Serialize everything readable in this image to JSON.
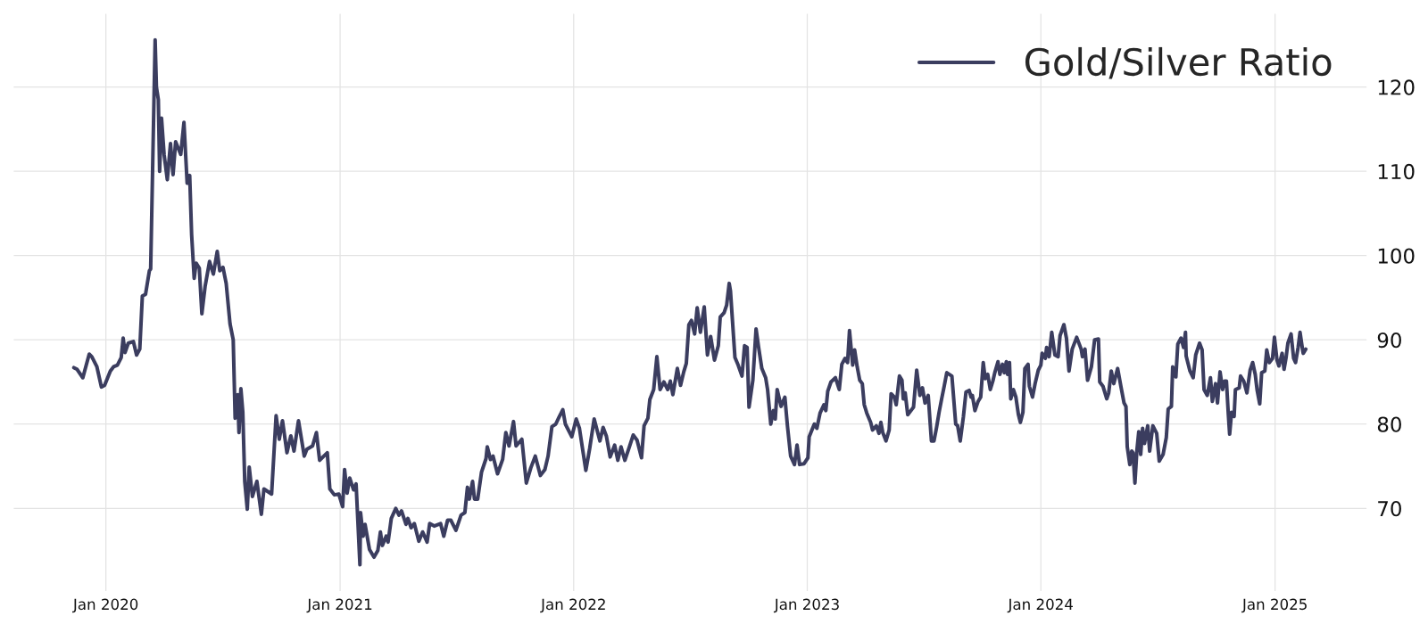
{
  "chart_data": {
    "type": "line",
    "x": [
      "2019-11-12",
      "2019-11-17",
      "2019-11-26",
      "2019-12-06",
      "2019-12-10",
      "2019-12-18",
      "2019-12-25",
      "2019-12-30",
      "2020-01-08",
      "2020-01-13",
      "2020-01-19",
      "2020-01-25",
      "2020-01-28",
      "2020-01-31",
      "2020-02-05",
      "2020-02-13",
      "2020-02-18",
      "2020-02-23",
      "2020-02-27",
      "2020-03-03",
      "2020-03-09",
      "2020-03-11",
      "2020-03-18",
      "2020-03-20",
      "2020-03-23",
      "2020-03-25",
      "2020-03-28",
      "2020-04-01",
      "2020-04-06",
      "2020-04-11",
      "2020-04-15",
      "2020-04-19",
      "2020-04-27",
      "2020-05-02",
      "2020-05-07",
      "2020-05-11",
      "2020-05-14",
      "2020-05-18",
      "2020-05-21",
      "2020-05-26",
      "2020-05-30",
      "2020-06-04",
      "2020-06-11",
      "2020-06-17",
      "2020-06-23",
      "2020-06-27",
      "2020-07-02",
      "2020-07-07",
      "2020-07-13",
      "2020-07-18",
      "2020-07-21",
      "2020-07-25",
      "2020-07-27",
      "2020-07-30",
      "2020-08-02",
      "2020-08-05",
      "2020-08-09",
      "2020-08-12",
      "2020-08-17",
      "2020-08-24",
      "2020-08-31",
      "2020-09-04",
      "2020-09-16",
      "2020-09-23",
      "2020-09-28",
      "2020-10-03",
      "2020-10-10",
      "2020-10-16",
      "2020-10-21",
      "2020-10-28",
      "2020-11-06",
      "2020-11-10",
      "2020-11-19",
      "2020-11-25",
      "2020-11-30",
      "2020-12-12",
      "2020-12-16",
      "2020-12-23",
      "2020-12-30",
      "2021-01-05",
      "2021-01-08",
      "2021-01-12",
      "2021-01-16",
      "2021-01-22",
      "2021-01-26",
      "2021-02-01",
      "2021-02-02",
      "2021-02-06",
      "2021-02-09",
      "2021-02-16",
      "2021-02-23",
      "2021-03-01",
      "2021-03-05",
      "2021-03-08",
      "2021-03-14",
      "2021-03-17",
      "2021-03-22",
      "2021-03-29",
      "2021-04-03",
      "2021-04-07",
      "2021-04-14",
      "2021-04-17",
      "2021-04-22",
      "2021-04-27",
      "2021-05-04",
      "2021-05-10",
      "2021-05-17",
      "2021-05-21",
      "2021-05-28",
      "2021-06-07",
      "2021-06-12",
      "2021-06-18",
      "2021-06-23",
      "2021-07-01",
      "2021-07-09",
      "2021-07-15",
      "2021-07-19",
      "2021-07-22",
      "2021-07-27",
      "2021-07-30",
      "2021-08-04",
      "2021-08-10",
      "2021-08-17",
      "2021-08-19",
      "2021-08-24",
      "2021-08-28",
      "2021-09-04",
      "2021-09-12",
      "2021-09-17",
      "2021-09-22",
      "2021-09-29",
      "2021-10-03",
      "2021-10-12",
      "2021-10-19",
      "2021-10-26",
      "2021-11-02",
      "2021-11-10",
      "2021-11-17",
      "2021-11-22",
      "2021-11-28",
      "2021-12-04",
      "2021-12-09",
      "2021-12-15",
      "2021-12-19",
      "2021-12-29",
      "2022-01-05",
      "2022-01-10",
      "2022-01-20",
      "2022-01-26",
      "2022-02-02",
      "2022-02-11",
      "2022-02-16",
      "2022-02-21",
      "2022-02-27",
      "2022-03-06",
      "2022-03-11",
      "2022-03-16",
      "2022-03-22",
      "2022-03-29",
      "2022-04-04",
      "2022-04-10",
      "2022-04-17",
      "2022-04-21",
      "2022-04-27",
      "2022-04-30",
      "2022-05-06",
      "2022-05-11",
      "2022-05-16",
      "2022-05-22",
      "2022-05-28",
      "2022-06-01",
      "2022-06-05",
      "2022-06-12",
      "2022-06-17",
      "2022-06-22",
      "2022-06-26",
      "2022-06-30",
      "2022-07-04",
      "2022-07-09",
      "2022-07-13",
      "2022-07-18",
      "2022-07-24",
      "2022-07-29",
      "2022-08-03",
      "2022-08-09",
      "2022-08-15",
      "2022-08-18",
      "2022-08-24",
      "2022-08-28",
      "2022-09-01",
      "2022-09-03",
      "2022-09-10",
      "2022-09-15",
      "2022-09-21",
      "2022-09-25",
      "2022-09-29",
      "2022-10-02",
      "2022-10-08",
      "2022-10-13",
      "2022-10-17",
      "2022-10-22",
      "2022-10-28",
      "2022-10-31",
      "2022-11-05",
      "2022-11-09",
      "2022-11-12",
      "2022-11-15",
      "2022-11-21",
      "2022-11-27",
      "2022-12-01",
      "2022-12-06",
      "2022-12-12",
      "2022-12-16",
      "2022-12-20",
      "2022-12-27",
      "2023-01-02",
      "2023-01-04",
      "2023-01-12",
      "2023-01-16",
      "2023-01-21",
      "2023-01-27",
      "2023-01-30",
      "2023-02-02",
      "2023-02-07",
      "2023-02-14",
      "2023-02-20",
      "2023-02-24",
      "2023-03-01",
      "2023-03-05",
      "2023-03-08",
      "2023-03-13",
      "2023-03-16",
      "2023-03-20",
      "2023-03-24",
      "2023-03-28",
      "2023-03-31",
      "2023-04-04",
      "2023-04-10",
      "2023-04-13",
      "2023-04-19",
      "2023-04-23",
      "2023-04-26",
      "2023-04-29",
      "2023-05-04",
      "2023-05-09",
      "2023-05-12",
      "2023-05-17",
      "2023-05-20",
      "2023-05-25",
      "2023-05-29",
      "2023-05-31",
      "2023-06-03",
      "2023-06-07",
      "2023-06-12",
      "2023-06-16",
      "2023-06-21",
      "2023-06-26",
      "2023-06-30",
      "2023-07-04",
      "2023-07-09",
      "2023-07-14",
      "2023-07-18",
      "2023-07-22",
      "2023-07-26",
      "2023-07-30",
      "2023-08-03",
      "2023-08-07",
      "2023-08-15",
      "2023-08-21",
      "2023-08-24",
      "2023-08-28",
      "2023-09-02",
      "2023-09-06",
      "2023-09-11",
      "2023-09-14",
      "2023-09-16",
      "2023-09-20",
      "2023-09-25",
      "2023-09-29",
      "2023-10-03",
      "2023-10-06",
      "2023-10-10",
      "2023-10-14",
      "2023-10-18",
      "2023-10-21",
      "2023-10-26",
      "2023-10-29",
      "2023-11-02",
      "2023-11-05",
      "2023-11-08",
      "2023-11-10",
      "2023-11-13",
      "2023-11-15",
      "2023-11-19",
      "2023-11-23",
      "2023-11-27",
      "2023-11-30",
      "2023-12-04",
      "2023-12-07",
      "2023-12-12",
      "2023-12-14",
      "2023-12-19",
      "2023-12-23",
      "2023-12-28",
      "2024-01-01",
      "2024-01-03",
      "2024-01-08",
      "2024-01-10",
      "2024-01-14",
      "2024-01-18",
      "2024-01-23",
      "2024-01-28",
      "2024-01-31",
      "2024-02-06",
      "2024-02-10",
      "2024-02-14",
      "2024-02-19",
      "2024-02-26",
      "2024-03-04",
      "2024-03-06",
      "2024-03-10",
      "2024-03-14",
      "2024-03-20",
      "2024-03-25",
      "2024-03-31",
      "2024-04-02",
      "2024-04-07",
      "2024-04-13",
      "2024-04-16",
      "2024-04-20",
      "2024-04-24",
      "2024-04-30",
      "2024-05-05",
      "2024-05-10",
      "2024-05-13",
      "2024-05-15",
      "2024-05-19",
      "2024-05-22",
      "2024-05-24",
      "2024-05-27",
      "2024-05-30",
      "2024-06-02",
      "2024-06-05",
      "2024-06-08",
      "2024-06-11",
      "2024-06-16",
      "2024-06-19",
      "2024-06-24",
      "2024-06-30",
      "2024-07-04",
      "2024-07-10",
      "2024-07-15",
      "2024-07-18",
      "2024-07-23",
      "2024-07-25",
      "2024-07-30",
      "2024-08-02",
      "2024-08-07",
      "2024-08-11",
      "2024-08-14",
      "2024-08-15",
      "2024-08-21",
      "2024-08-26",
      "2024-08-30",
      "2024-09-05",
      "2024-09-09",
      "2024-09-12",
      "2024-09-17",
      "2024-09-22",
      "2024-09-25",
      "2024-09-30",
      "2024-10-03",
      "2024-10-07",
      "2024-10-11",
      "2024-10-14",
      "2024-10-17",
      "2024-10-20",
      "2024-10-22",
      "2024-10-25",
      "2024-10-29",
      "2024-10-31",
      "2024-11-06",
      "2024-11-08",
      "2024-11-13",
      "2024-11-18",
      "2024-11-23",
      "2024-11-27",
      "2024-12-01",
      "2024-12-04",
      "2024-12-08",
      "2024-12-11",
      "2024-12-16",
      "2024-12-19",
      "2024-12-23",
      "2024-12-28",
      "2024-12-31",
      "2025-01-04",
      "2025-01-07",
      "2025-01-12",
      "2025-01-15",
      "2025-01-18",
      "2025-01-21",
      "2025-01-26",
      "2025-01-30",
      "2025-02-02",
      "2025-02-06",
      "2025-02-09",
      "2025-02-13",
      "2025-02-14",
      "2025-02-18"
    ],
    "series": [
      {
        "name": "Gold/Silver Ratio",
        "color": "#3b3d5f",
        "values": [
          86.7,
          86.5,
          85.5,
          88.3,
          88.0,
          86.8,
          84.4,
          84.6,
          86.3,
          86.8,
          87.0,
          87.9,
          90.2,
          88.5,
          89.6,
          89.8,
          88.2,
          88.9,
          95.2,
          95.4,
          98.2,
          98.4,
          125.6,
          120.0,
          118.5,
          110.0,
          116.3,
          112.0,
          109.0,
          113.3,
          109.6,
          113.5,
          112.0,
          115.8,
          108.6,
          109.5,
          102.5,
          97.3,
          99.1,
          98.5,
          93.1,
          96.3,
          99.3,
          97.8,
          100.5,
          98.2,
          98.6,
          96.7,
          91.9,
          90.0,
          80.7,
          83.5,
          79.0,
          84.2,
          81.4,
          73.2,
          69.9,
          74.9,
          71.4,
          73.2,
          69.3,
          72.3,
          71.7,
          81.0,
          78.2,
          80.4,
          76.6,
          78.6,
          76.8,
          80.4,
          76.2,
          77.0,
          77.4,
          79.0,
          75.7,
          76.6,
          72.3,
          71.6,
          71.7,
          70.2,
          74.6,
          71.8,
          73.6,
          72.2,
          72.9,
          63.3,
          69.5,
          66.7,
          68.1,
          65.1,
          64.2,
          65.0,
          67.2,
          65.6,
          66.7,
          66.0,
          68.8,
          70.0,
          69.2,
          69.7,
          68.1,
          68.8,
          67.7,
          68.2,
          66.1,
          67.2,
          66.0,
          68.2,
          67.9,
          68.2,
          66.7,
          68.6,
          68.6,
          67.4,
          69.2,
          69.5,
          72.5,
          71.1,
          73.2,
          71.1,
          71.1,
          74.3,
          75.9,
          77.3,
          75.8,
          76.2,
          74.1,
          75.8,
          79.0,
          77.4,
          80.3,
          77.4,
          78.2,
          73.0,
          74.8,
          76.2,
          73.9,
          74.6,
          76.2,
          79.7,
          80.0,
          80.8,
          81.7,
          80.0,
          78.5,
          80.6,
          79.5,
          74.5,
          77.1,
          80.6,
          78.0,
          79.6,
          78.6,
          76.1,
          77.5,
          75.7,
          77.3,
          75.7,
          77.3,
          78.7,
          78.1,
          76.0,
          79.8,
          80.7,
          82.9,
          84.1,
          88.0,
          84.1,
          85.0,
          84.1,
          85.1,
          83.5,
          86.6,
          84.6,
          86.2,
          87.2,
          91.8,
          92.3,
          90.7,
          93.8,
          90.9,
          93.9,
          88.2,
          90.4,
          87.6,
          89.3,
          92.7,
          93.2,
          94.1,
          96.7,
          95.8,
          87.9,
          87.0,
          85.7,
          89.3,
          89.1,
          82.0,
          85.2,
          91.3,
          89.1,
          86.6,
          85.5,
          84.1,
          80.0,
          81.6,
          80.6,
          84.1,
          82.1,
          83.2,
          79.8,
          76.2,
          75.2,
          77.5,
          75.2,
          75.3,
          76.0,
          78.5,
          80.0,
          79.5,
          81.3,
          82.3,
          81.6,
          83.9,
          85.0,
          85.5,
          84.1,
          87.1,
          87.8,
          87.3,
          91.1,
          87.0,
          88.8,
          86.8,
          85.2,
          84.8,
          82.3,
          81.3,
          80.2,
          79.3,
          79.8,
          78.9,
          80.2,
          79.0,
          78.0,
          79.3,
          83.6,
          83.2,
          82.3,
          85.7,
          85.2,
          83.0,
          83.7,
          81.1,
          81.6,
          82.0,
          86.4,
          83.4,
          84.3,
          82.5,
          83.4,
          78.0,
          78.0,
          79.6,
          81.4,
          83.0,
          84.5,
          86.1,
          85.7,
          80.0,
          79.8,
          78.0,
          80.9,
          83.8,
          84.0,
          83.2,
          83.4,
          81.6,
          82.7,
          83.2,
          87.3,
          85.4,
          85.9,
          84.1,
          85.1,
          86.1,
          87.4,
          85.9,
          87.1,
          86.1,
          87.4,
          85.9,
          87.3,
          83.0,
          84.1,
          83.2,
          81.1,
          80.2,
          81.4,
          86.6,
          87.1,
          84.5,
          83.2,
          84.8,
          86.4,
          87.0,
          88.4,
          87.8,
          89.1,
          88.0,
          90.9,
          88.2,
          88.0,
          90.5,
          91.8,
          90.2,
          86.3,
          88.9,
          90.3,
          88.9,
          88.0,
          88.9,
          85.2,
          86.8,
          90.0,
          90.1,
          85.0,
          84.5,
          83.0,
          83.7,
          86.3,
          84.8,
          86.6,
          84.5,
          82.5,
          82.1,
          77.3,
          75.2,
          76.8,
          76.6,
          73.0,
          76.8,
          79.1,
          76.4,
          79.5,
          77.7,
          79.8,
          76.8,
          79.8,
          78.9,
          75.6,
          76.4,
          78.4,
          81.8,
          82.1,
          86.8,
          85.6,
          89.5,
          90.2,
          89.1,
          90.9,
          88.1,
          86.3,
          85.5,
          88.2,
          89.6,
          88.8,
          84.1,
          83.4,
          85.5,
          82.7,
          84.8,
          82.5,
          86.2,
          84.1,
          85.1,
          85.1,
          81.1,
          78.8,
          81.4,
          80.9,
          84.1,
          84.3,
          85.7,
          85.1,
          83.7,
          86.4,
          87.3,
          85.9,
          84.0,
          82.4,
          86.1,
          86.3,
          88.8,
          87.3,
          87.8,
          90.3,
          87.6,
          86.9,
          88.4,
          86.5,
          87.8,
          89.6,
          90.7,
          87.8,
          87.3,
          89.1,
          90.9,
          88.8,
          88.4,
          88.9
        ]
      }
    ],
    "xlim": [
      "2019-08-10",
      "2025-05-24"
    ],
    "xticks": [
      {
        "value": "2020-01-01",
        "label": "Jan 2020"
      },
      {
        "value": "2021-01-01",
        "label": "Jan 2021"
      },
      {
        "value": "2022-01-01",
        "label": "Jan 2022"
      },
      {
        "value": "2023-01-01",
        "label": "Jan 2023"
      },
      {
        "value": "2024-01-01",
        "label": "Jan 2024"
      },
      {
        "value": "2025-01-01",
        "label": "Jan 2025"
      }
    ],
    "ylim": [
      60.2,
      128.7
    ],
    "yticks": [
      70,
      80,
      90,
      100,
      110,
      120
    ],
    "grid": true,
    "legend": "top right"
  }
}
